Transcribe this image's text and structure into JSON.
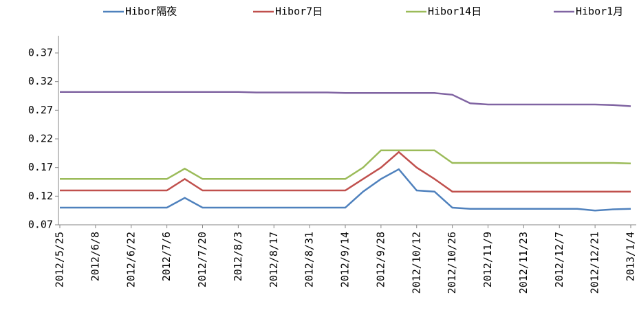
{
  "chart_data": {
    "type": "line",
    "categories": [
      "2012/5/25",
      null,
      "2012/6/8",
      null,
      "2012/6/22",
      null,
      "2012/7/6",
      null,
      "2012/7/20",
      null,
      "2012/8/3",
      null,
      "2012/8/17",
      null,
      "2012/8/31",
      null,
      "2012/9/14",
      null,
      "2012/9/28",
      null,
      "2012/10/12",
      null,
      "2012/10/26",
      null,
      "2012/11/9",
      null,
      "2012/11/23",
      null,
      "2012/12/7",
      null,
      "2012/12/21",
      null,
      "2013/1/4"
    ],
    "series": [
      {
        "name": "Hibor隔夜",
        "color": "#4f81bd",
        "values": [
          0.1,
          0.1,
          0.1,
          0.1,
          0.1,
          0.1,
          0.1,
          0.117,
          0.1,
          0.1,
          0.1,
          0.1,
          0.1,
          0.1,
          0.1,
          0.1,
          0.1,
          0.128,
          0.15,
          0.167,
          0.13,
          0.128,
          0.1,
          0.098,
          0.098,
          0.098,
          0.098,
          0.098,
          0.098,
          0.098,
          0.095,
          0.097,
          0.098
        ]
      },
      {
        "name": "Hibor7日",
        "color": "#c0504d",
        "values": [
          0.13,
          0.13,
          0.13,
          0.13,
          0.13,
          0.13,
          0.13,
          0.15,
          0.13,
          0.13,
          0.13,
          0.13,
          0.13,
          0.13,
          0.13,
          0.13,
          0.13,
          0.15,
          0.17,
          0.197,
          0.17,
          0.15,
          0.128,
          0.128,
          0.128,
          0.128,
          0.128,
          0.128,
          0.128,
          0.128,
          0.128,
          0.128,
          0.128
        ]
      },
      {
        "name": "Hibor14日",
        "color": "#9bbb59",
        "values": [
          0.15,
          0.15,
          0.15,
          0.15,
          0.15,
          0.15,
          0.15,
          0.168,
          0.15,
          0.15,
          0.15,
          0.15,
          0.15,
          0.15,
          0.15,
          0.15,
          0.15,
          0.17,
          0.2,
          0.2,
          0.2,
          0.2,
          0.178,
          0.178,
          0.178,
          0.178,
          0.178,
          0.178,
          0.178,
          0.178,
          0.178,
          0.178,
          0.177
        ]
      },
      {
        "name": "Hibor1月",
        "color": "#8064a2",
        "values": [
          0.302,
          0.302,
          0.302,
          0.302,
          0.302,
          0.302,
          0.302,
          0.302,
          0.302,
          0.302,
          0.302,
          0.301,
          0.301,
          0.301,
          0.301,
          0.301,
          0.3,
          0.3,
          0.3,
          0.3,
          0.3,
          0.3,
          0.297,
          0.282,
          0.28,
          0.28,
          0.28,
          0.28,
          0.28,
          0.28,
          0.28,
          0.279,
          0.277
        ]
      }
    ],
    "ylim": [
      0.07,
      0.4
    ],
    "yticks": [
      0.07,
      0.12,
      0.17,
      0.22,
      0.27,
      0.32,
      0.37
    ],
    "legend": "top"
  }
}
